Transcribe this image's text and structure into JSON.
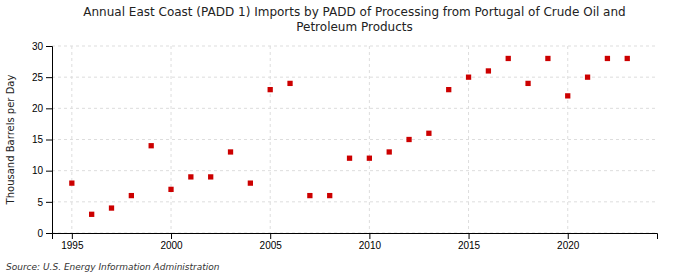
{
  "chart_data": {
    "type": "scatter",
    "title": "Annual East Coast (PADD 1) Imports by PADD of Processing from Portugal of Crude Oil and\nPetroleum Products",
    "ylabel": "Thousand Barrels per Day",
    "source": "Source: U.S. Energy Information Administration",
    "x": [
      1995,
      1996,
      1997,
      1998,
      1999,
      2000,
      2001,
      2002,
      2003,
      2004,
      2005,
      2006,
      2007,
      2008,
      2009,
      2010,
      2011,
      2012,
      2013,
      2014,
      2015,
      2016,
      2017,
      2018,
      2019,
      2020,
      2021,
      2022,
      2023
    ],
    "values": [
      8.0,
      3.0,
      4.0,
      6.0,
      14.0,
      7.0,
      9.0,
      9.0,
      13.0,
      8.0,
      23.0,
      24.0,
      6.0,
      6.0,
      12.0,
      12.0,
      13.0,
      15.0,
      16.0,
      23.0,
      25.0,
      26.0,
      28.0,
      24.0,
      28.0,
      22.0,
      25.0,
      28.0,
      28.0
    ],
    "color": "#cc0000",
    "marker": "square",
    "xlim": [
      1994.0,
      2024.5
    ],
    "ylim": [
      0,
      30
    ],
    "xticks": [
      1995,
      2000,
      2005,
      2010,
      2015,
      2020
    ],
    "yticks": [
      0,
      5,
      10,
      15,
      20,
      25,
      30
    ],
    "grid": true
  }
}
